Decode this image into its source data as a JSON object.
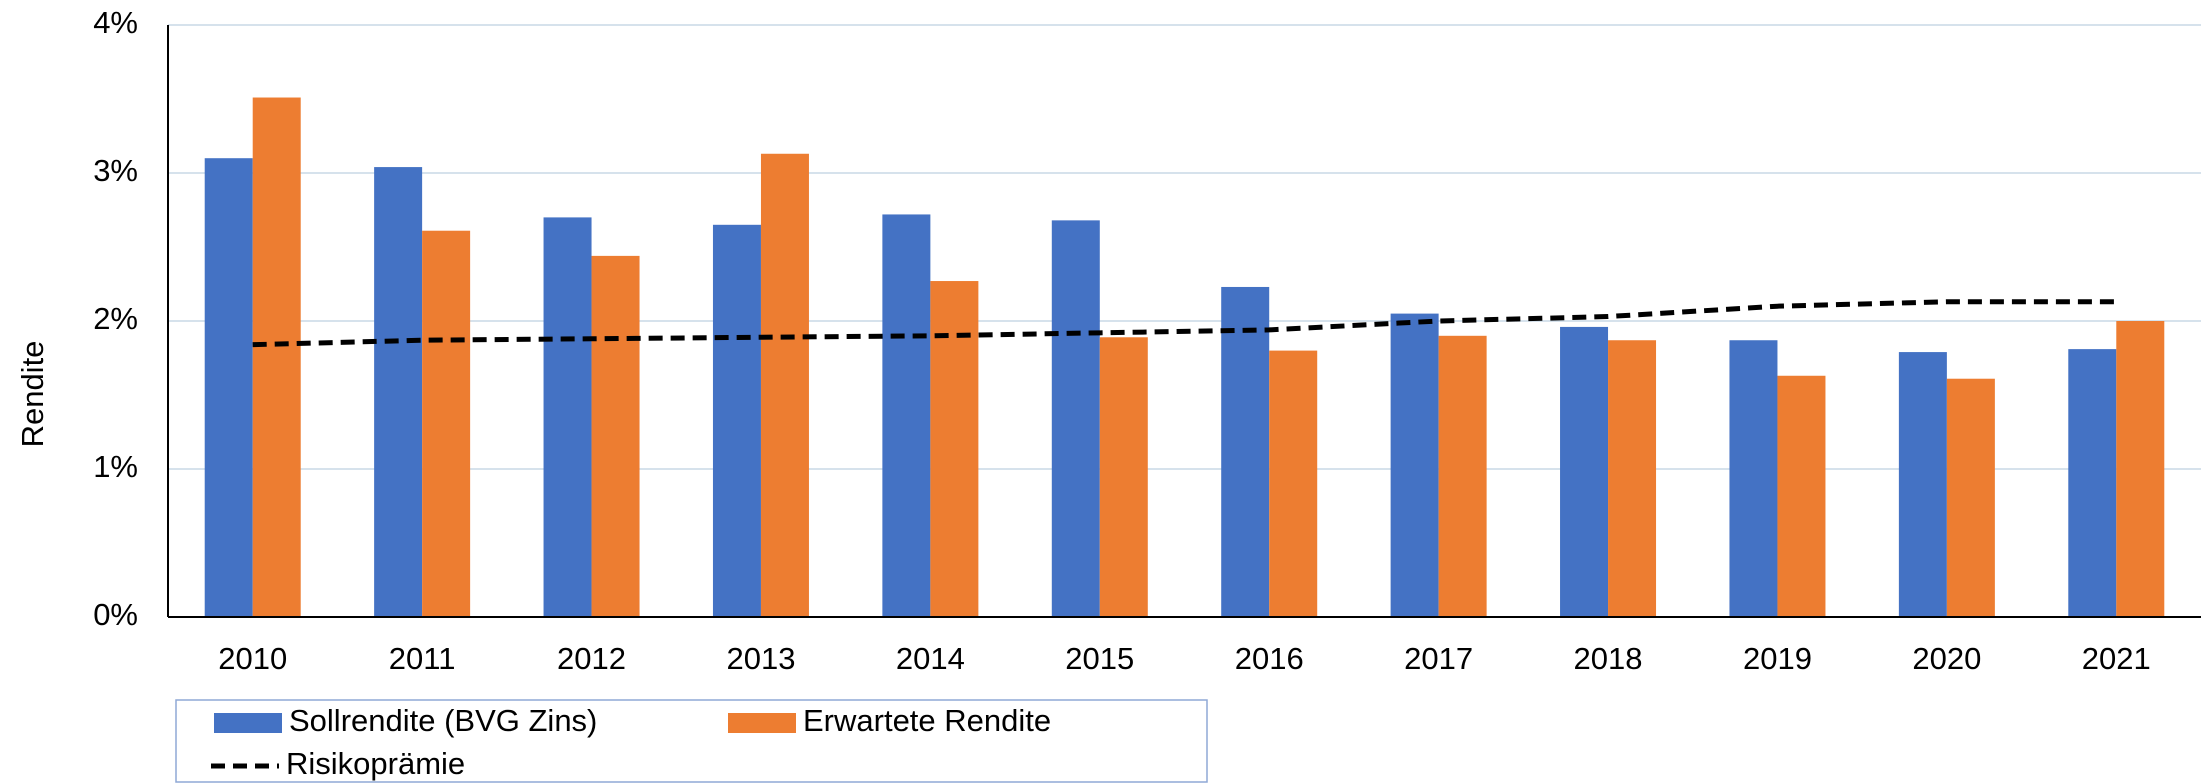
{
  "chart_data": {
    "type": "bar",
    "y_label": "Rendite",
    "categories": [
      "2010",
      "2011",
      "2012",
      "2013",
      "2014",
      "2015",
      "2016",
      "2017",
      "2018",
      "2019",
      "2020",
      "2021"
    ],
    "series": [
      {
        "name": "Sollrendite (BVG Zins)",
        "type": "bar",
        "color": "#4472c4",
        "values": [
          3.1,
          3.04,
          2.7,
          2.65,
          2.72,
          2.68,
          2.23,
          2.05,
          1.96,
          1.87,
          1.79,
          1.81
        ]
      },
      {
        "name": "Erwartete Rendite",
        "type": "bar",
        "color": "#ed7d31",
        "values": [
          3.51,
          2.61,
          2.44,
          3.13,
          2.27,
          1.89,
          1.8,
          1.9,
          1.87,
          1.63,
          1.61,
          2.0
        ]
      },
      {
        "name": "Risikoprämie",
        "type": "line",
        "dashed": true,
        "color": "#000000",
        "values": [
          1.84,
          1.87,
          1.88,
          1.89,
          1.9,
          1.92,
          1.94,
          2.0,
          2.03,
          2.1,
          2.13,
          2.13
        ]
      }
    ],
    "ylim": [
      0,
      4
    ],
    "yticks": [
      {
        "value": 0,
        "label": "0%"
      },
      {
        "value": 1,
        "label": "1%"
      },
      {
        "value": 2,
        "label": "2%"
      },
      {
        "value": 3,
        "label": "3%"
      },
      {
        "value": 4,
        "label": "4%"
      }
    ],
    "grid": true,
    "legend": "bottom-left"
  }
}
